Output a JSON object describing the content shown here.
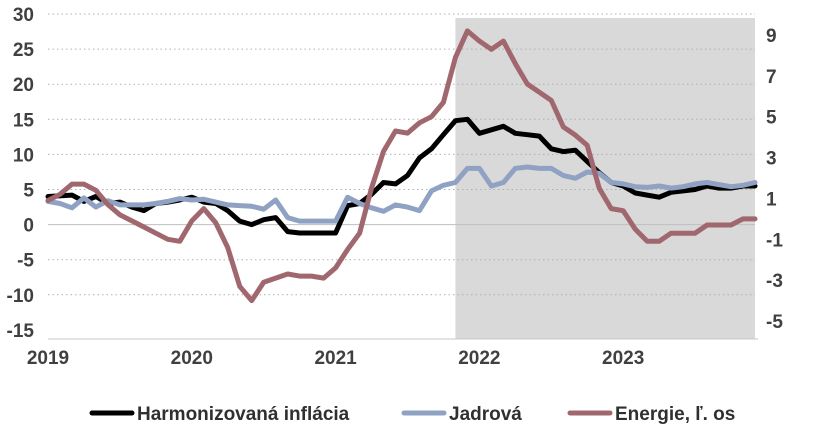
{
  "chart_data": {
    "type": "line",
    "x_ticks": [
      "2019",
      "2020",
      "2021",
      "2022",
      "2023"
    ],
    "x_range": [
      "2019-01",
      "2023-12"
    ],
    "y_left": {
      "ticks": [
        "30",
        "25",
        "20",
        "15",
        "10",
        "5",
        "0",
        "-5",
        "-10",
        "-15"
      ],
      "range": [
        -15,
        30
      ]
    },
    "y_right": {
      "ticks": [
        "9",
        "7",
        "5",
        "3",
        "1",
        "-1",
        "-3",
        "-5"
      ],
      "range": [
        -5,
        10
      ]
    },
    "grid": "horizontal dotted",
    "legend_position": "bottom",
    "shaded_region": {
      "from": "2021-11",
      "to": "2023-12",
      "color": "#d9d9d9"
    },
    "series": [
      {
        "name": "Harmonizovaná inflácia",
        "axis": "left",
        "color": "#000000",
        "values": [
          [
            "2019-01",
            4
          ],
          [
            "2019-03",
            4.2
          ],
          [
            "2019-04",
            3.3
          ],
          [
            "2019-05",
            4
          ],
          [
            "2019-06",
            3
          ],
          [
            "2019-07",
            3.2
          ],
          [
            "2019-08",
            2.5
          ],
          [
            "2019-09",
            2
          ],
          [
            "2019-10",
            3
          ],
          [
            "2019-11",
            3.2
          ],
          [
            "2019-12",
            3.5
          ],
          [
            "2020-01",
            3.9
          ],
          [
            "2020-02",
            3.2
          ],
          [
            "2020-03",
            3
          ],
          [
            "2020-04",
            2
          ],
          [
            "2020-05",
            0.5
          ],
          [
            "2020-06",
            0
          ],
          [
            "2020-07",
            0.7
          ],
          [
            "2020-08",
            1
          ],
          [
            "2020-09",
            -1
          ],
          [
            "2020-10",
            -1.2
          ],
          [
            "2020-11",
            -1.2
          ],
          [
            "2020-12",
            -1.2
          ],
          [
            "2021-01",
            -1.2
          ],
          [
            "2021-02",
            2.7
          ],
          [
            "2021-03",
            3
          ],
          [
            "2021-04",
            4.3
          ],
          [
            "2021-05",
            6
          ],
          [
            "2021-06",
            5.8
          ],
          [
            "2021-07",
            7
          ],
          [
            "2021-08",
            9.5
          ],
          [
            "2021-09",
            10.8
          ],
          [
            "2021-10",
            12.8
          ],
          [
            "2021-11",
            14.8
          ],
          [
            "2021-12",
            15
          ],
          [
            "2022-01",
            13
          ],
          [
            "2022-02",
            13.5
          ],
          [
            "2022-03",
            14
          ],
          [
            "2022-04",
            13
          ],
          [
            "2022-05",
            12.8
          ],
          [
            "2022-06",
            12.6
          ],
          [
            "2022-07",
            10.8
          ],
          [
            "2022-08",
            10.4
          ],
          [
            "2022-09",
            10.6
          ],
          [
            "2022-10",
            9
          ],
          [
            "2022-11",
            7.4
          ],
          [
            "2022-12",
            6
          ],
          [
            "2023-01",
            5.5
          ],
          [
            "2023-02",
            4.5
          ],
          [
            "2023-03",
            4.2
          ],
          [
            "2023-04",
            3.9
          ],
          [
            "2023-05",
            4.6
          ],
          [
            "2023-06",
            4.8
          ],
          [
            "2023-07",
            5
          ],
          [
            "2023-08",
            5.5
          ],
          [
            "2023-09",
            5.2
          ],
          [
            "2023-10",
            5.2
          ],
          [
            "2023-11",
            5.5
          ],
          [
            "2023-12",
            5.5
          ]
        ]
      },
      {
        "name": "Jadrová",
        "axis": "left",
        "color": "#8fa2c4",
        "values": [
          [
            "2019-01",
            3.3
          ],
          [
            "2019-02",
            3
          ],
          [
            "2019-03",
            2.4
          ],
          [
            "2019-04",
            3.8
          ],
          [
            "2019-05",
            2.5
          ],
          [
            "2019-06",
            3.4
          ],
          [
            "2019-07",
            2.8
          ],
          [
            "2019-08",
            2.8
          ],
          [
            "2019-09",
            2.8
          ],
          [
            "2019-10",
            3
          ],
          [
            "2019-11",
            3.3
          ],
          [
            "2019-12",
            3.7
          ],
          [
            "2020-01",
            3.5
          ],
          [
            "2020-02",
            3.6
          ],
          [
            "2020-03",
            3.2
          ],
          [
            "2020-04",
            2.8
          ],
          [
            "2020-05",
            2.7
          ],
          [
            "2020-06",
            2.6
          ],
          [
            "2020-07",
            2.2
          ],
          [
            "2020-08",
            3.5
          ],
          [
            "2020-09",
            1
          ],
          [
            "2020-10",
            0.5
          ],
          [
            "2020-11",
            0.5
          ],
          [
            "2020-12",
            0.5
          ],
          [
            "2021-01",
            0.5
          ],
          [
            "2021-02",
            3.9
          ],
          [
            "2021-03",
            3
          ],
          [
            "2021-04",
            2.4
          ],
          [
            "2021-05",
            1.9
          ],
          [
            "2021-06",
            2.8
          ],
          [
            "2021-07",
            2.5
          ],
          [
            "2021-08",
            2
          ],
          [
            "2021-09",
            4.8
          ],
          [
            "2021-10",
            5.6
          ],
          [
            "2021-11",
            6
          ],
          [
            "2021-12",
            8
          ],
          [
            "2022-01",
            8
          ],
          [
            "2022-02",
            5.5
          ],
          [
            "2022-03",
            6
          ],
          [
            "2022-04",
            8
          ],
          [
            "2022-05",
            8.2
          ],
          [
            "2022-06",
            8
          ],
          [
            "2022-07",
            8
          ],
          [
            "2022-08",
            7
          ],
          [
            "2022-09",
            6.6
          ],
          [
            "2022-10",
            7.5
          ],
          [
            "2022-11",
            7.3
          ],
          [
            "2022-12",
            6
          ],
          [
            "2023-01",
            5.8
          ],
          [
            "2023-02",
            5.4
          ],
          [
            "2023-03",
            5.3
          ],
          [
            "2023-04",
            5.5
          ],
          [
            "2023-05",
            5.2
          ],
          [
            "2023-06",
            5.4
          ],
          [
            "2023-07",
            5.8
          ],
          [
            "2023-08",
            6
          ],
          [
            "2023-09",
            5.7
          ],
          [
            "2023-10",
            5.4
          ],
          [
            "2023-11",
            5.6
          ],
          [
            "2023-12",
            6
          ]
        ]
      },
      {
        "name": "Energie, ľ. os",
        "axis": "right",
        "color": "#a0676e",
        "values": [
          [
            "2019-01",
            0.9
          ],
          [
            "2019-02",
            1.2
          ],
          [
            "2019-03",
            1.7
          ],
          [
            "2019-04",
            1.7
          ],
          [
            "2019-05",
            1.4
          ],
          [
            "2019-06",
            0.7
          ],
          [
            "2019-07",
            0.2
          ],
          [
            "2019-08",
            -0.1
          ],
          [
            "2019-09",
            -0.4
          ],
          [
            "2019-10",
            -0.7
          ],
          [
            "2019-11",
            -1
          ],
          [
            "2019-12",
            -1.1
          ],
          [
            "2020-01",
            -0.1
          ],
          [
            "2020-02",
            0.5
          ],
          [
            "2020-03",
            -0.2
          ],
          [
            "2020-04",
            -1.4
          ],
          [
            "2020-05",
            -3.3
          ],
          [
            "2020-06",
            -4
          ],
          [
            "2020-07",
            -3.1
          ],
          [
            "2020-08",
            -2.9
          ],
          [
            "2020-09",
            -2.7
          ],
          [
            "2020-10",
            -2.8
          ],
          [
            "2020-11",
            -2.8
          ],
          [
            "2020-12",
            -2.9
          ],
          [
            "2021-01",
            -2.4
          ],
          [
            "2021-02",
            -1.5
          ],
          [
            "2021-03",
            -0.7
          ],
          [
            "2021-04",
            1.5
          ],
          [
            "2021-05",
            3.3
          ],
          [
            "2021-06",
            4.3
          ],
          [
            "2021-07",
            4.2
          ],
          [
            "2021-08",
            4.7
          ],
          [
            "2021-09",
            5
          ],
          [
            "2021-10",
            5.7
          ],
          [
            "2021-11",
            7.9
          ],
          [
            "2021-12",
            9.2
          ],
          [
            "2022-01",
            8.7
          ],
          [
            "2022-02",
            8.3
          ],
          [
            "2022-03",
            8.7
          ],
          [
            "2022-04",
            7.6
          ],
          [
            "2022-05",
            6.6
          ],
          [
            "2022-06",
            6.2
          ],
          [
            "2022-07",
            5.8
          ],
          [
            "2022-08",
            4.5
          ],
          [
            "2022-09",
            4.1
          ],
          [
            "2022-10",
            3.6
          ],
          [
            "2022-11",
            1.5
          ],
          [
            "2022-12",
            0.5
          ],
          [
            "2023-01",
            0.4
          ],
          [
            "2023-02",
            -0.5
          ],
          [
            "2023-03",
            -1.1
          ],
          [
            "2023-04",
            -1.1
          ],
          [
            "2023-05",
            -0.7
          ],
          [
            "2023-06",
            -0.7
          ],
          [
            "2023-07",
            -0.7
          ],
          [
            "2023-08",
            -0.3
          ],
          [
            "2023-09",
            -0.3
          ],
          [
            "2023-10",
            -0.3
          ],
          [
            "2023-11",
            0
          ],
          [
            "2023-12",
            0
          ]
        ]
      }
    ]
  }
}
